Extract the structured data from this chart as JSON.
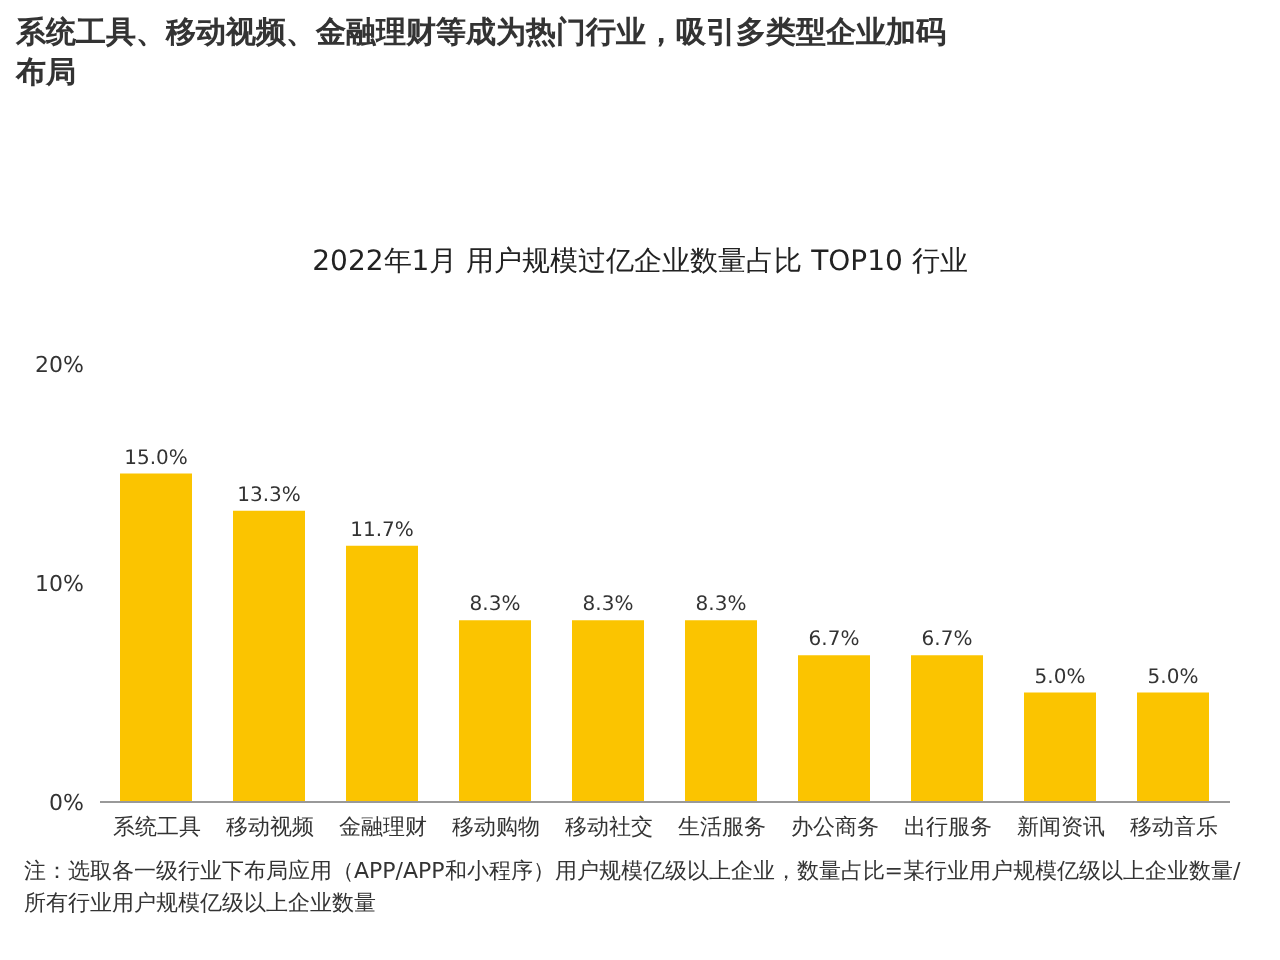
{
  "chart_data": {
    "type": "bar",
    "title": "系统工具、移动视频、金融理财等成为热门行业，吸引多类型企业加码布局",
    "subtitle": "2022年1月 用户规模过亿企业数量占比 TOP10 行业",
    "categories": [
      "系统工具",
      "移动视频",
      "金融理财",
      "移动购物",
      "移动社交",
      "生活服务",
      "办公商务",
      "出行服务",
      "新闻资讯",
      "移动音乐"
    ],
    "values": [
      15.0,
      13.3,
      11.7,
      8.3,
      8.3,
      8.3,
      6.7,
      6.7,
      5.0,
      5.0
    ],
    "value_labels": [
      "15.0%",
      "13.3%",
      "11.7%",
      "8.3%",
      "8.3%",
      "8.3%",
      "6.7%",
      "6.7%",
      "5.0%",
      "5.0%"
    ],
    "color": "#fbc400",
    "ylim": [
      0,
      20
    ],
    "yticks": [
      {
        "value": 0,
        "label": "0%"
      },
      {
        "value": 10,
        "label": "10%"
      },
      {
        "value": 20,
        "label": "20%"
      }
    ],
    "annotations": [
      "注：选取各一级行业下布局应用（APP/APP和小程序）用户规模亿级以上企业，数量占比=某行业用户规模亿级以上企业数量/所有行业用户规模亿级以上企业数量"
    ]
  }
}
